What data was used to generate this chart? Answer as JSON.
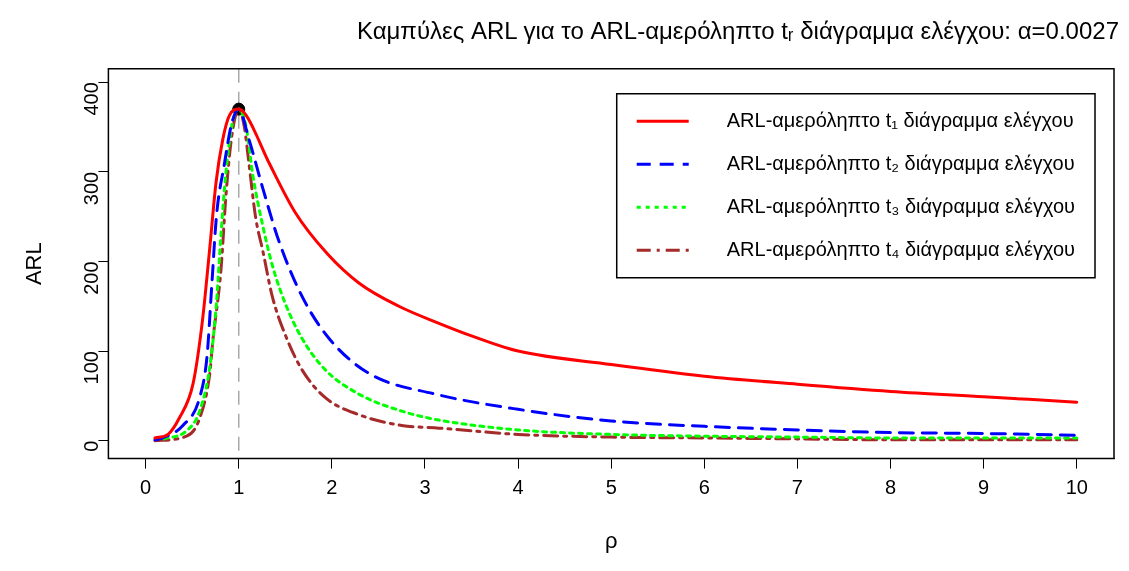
{
  "chart_data": {
    "type": "line",
    "title": "Καμπύλες ARL για το ARL-αμερόληπτο tᵣ διάγραμμα ελέγχου: α=0.0027",
    "xlabel": "ρ",
    "ylabel": "ARL",
    "xlim": [
      -0.4,
      10.4
    ],
    "ylim": [
      -20,
      415
    ],
    "xticks": [
      0,
      1,
      2,
      3,
      4,
      5,
      6,
      7,
      8,
      9,
      10
    ],
    "yticks": [
      0,
      100,
      200,
      300,
      400
    ],
    "legend": "top right",
    "marker": "none",
    "ref_lines": [
      {
        "axis": "x",
        "value": 1,
        "color": "#aaaaaa",
        "line_style": "dashed"
      }
    ],
    "series": [
      {
        "name": "ARL-αμερόληπτο t₁ διάγραμμα ελέγχου",
        "color": "#ff0000",
        "line_style": "solid",
        "x": [
          0.1,
          0.24,
          0.36,
          0.51,
          0.61,
          0.685,
          0.757,
          0.828,
          0.9,
          1,
          1.08,
          1.33,
          1.61,
          1.93,
          2.29,
          2.72,
          3.15,
          3.5,
          4,
          5,
          6,
          7,
          8,
          9,
          10
        ],
        "values": [
          3,
          7,
          25,
          64,
          134,
          211,
          289,
          336,
          363,
          370,
          363,
          309,
          254,
          211,
          176,
          150,
          131,
          117,
          100,
          85,
          72,
          63,
          55,
          49,
          43
        ]
      },
      {
        "name": "ARL-αμερόληπτο t₂ διάγραμμα ελέγχου",
        "color": "#0000ff",
        "line_style": "dashed",
        "x": [
          0.1,
          0.15,
          0.4,
          0.58,
          0.66,
          0.71,
          0.76,
          0.846,
          0.92,
          1,
          1.11,
          1.26,
          1.43,
          1.68,
          1.97,
          2.4,
          3.11,
          4,
          5,
          6,
          7,
          8,
          9,
          10
        ],
        "values": [
          1,
          2,
          17,
          48,
          95,
          173,
          250,
          309,
          352,
          370,
          336,
          281,
          223,
          161,
          114,
          75,
          52,
          35,
          22,
          16,
          12,
          9,
          8,
          6
        ]
      },
      {
        "name": "ARL-αμερόληπτο t₃ διάγραμμα ελέγχου",
        "color": "#00ff00",
        "line_style": "dotted",
        "x": [
          0.2,
          0.44,
          0.58,
          0.69,
          0.76,
          0.81,
          0.86,
          0.93,
          1,
          1.08,
          1.15,
          1.26,
          1.36,
          1.5,
          1.68,
          1.93,
          2.29,
          2.75,
          3.15,
          4,
          5,
          6,
          7,
          8,
          9,
          10
        ],
        "values": [
          2,
          11,
          33,
          83,
          153,
          231,
          297,
          354,
          370,
          350,
          297,
          239,
          196,
          153,
          114,
          79,
          52,
          33,
          23,
          12,
          7,
          5,
          4,
          3,
          3,
          3
        ]
      },
      {
        "name": "ARL-αμερόληπτο t₄ διάγραμμα ελέγχου",
        "color": "#a52a2a",
        "line_style": "dashdot",
        "x": [
          0.1,
          0.44,
          0.58,
          0.69,
          0.72,
          0.81,
          0.86,
          0.92,
          1,
          1.06,
          1.11,
          1.18,
          1.26,
          1.36,
          1.5,
          1.68,
          1.93,
          2.29,
          2.75,
          3.15,
          4,
          5,
          6,
          7,
          8,
          9,
          10
        ],
        "values": [
          0,
          5,
          25,
          76,
          110,
          192,
          270,
          336,
          370,
          350,
          309,
          250,
          211,
          161,
          118,
          79,
          48,
          29,
          17,
          14,
          7,
          4,
          3,
          2,
          1,
          1,
          1
        ]
      },
      {
        "type": "scatter",
        "color": "#000000",
        "marker": "circle",
        "x": [
          1
        ],
        "values": [
          370
        ]
      }
    ]
  }
}
